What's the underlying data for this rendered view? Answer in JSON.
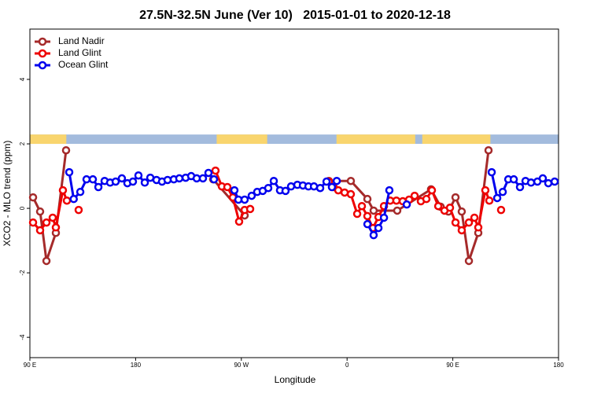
{
  "chart_data": {
    "type": "line",
    "title": "27.5N-32.5N June (Ver 10)   2015-01-01 to 2020-12-18",
    "xlabel": "Longitude",
    "ylabel": "XCO2 - MLO trend (ppm)",
    "xlim": [
      90,
      540
    ],
    "xticks": [
      {
        "value": 90,
        "label": "90 E"
      },
      {
        "value": 180,
        "label": "180"
      },
      {
        "value": 270,
        "label": "90 W"
      },
      {
        "value": 360,
        "label": "0"
      },
      {
        "value": 450,
        "label": "90 E"
      },
      {
        "value": 540,
        "label": "180"
      }
    ],
    "ylim": [
      -4.63,
      5.56
    ],
    "yticks": [
      -4,
      -2,
      0,
      2,
      4
    ],
    "legend": "top-left",
    "surface_band": {
      "y": [
        2.0,
        2.29
      ],
      "ocean_color": "#a3bbdd",
      "land_color": "#f9d56e",
      "land": [
        [
          90,
          121
        ],
        [
          249,
          292
        ],
        [
          351,
          418
        ],
        [
          424,
          482
        ]
      ]
    },
    "series": [
      {
        "name": "Land Nadir",
        "color": "#a52a2a",
        "x": [
          92.7,
          98.7,
          104.1,
          112.1,
          120.8,
          null,
          246.0,
          272.8,
          null,
          344.5,
          363.2,
          377.3,
          382.6,
          402.7,
          431.5,
          439.6,
          446.3,
          452.3,
          457.6,
          463.7,
          471.7,
          480.4
        ],
        "values": [
          0.34,
          -0.1,
          -1.63,
          -0.76,
          1.8,
          null,
          0.9,
          -0.22,
          null,
          0.85,
          0.85,
          0.29,
          -0.07,
          -0.07,
          0.59,
          0.05,
          -0.1,
          0.34,
          -0.1,
          -1.63,
          -0.76,
          1.8
        ]
      },
      {
        "name": "Land Glint",
        "color": "#ee0000",
        "x": [
          92.7,
          98.7,
          104.1,
          109.4,
          112.1,
          118.1,
          121.5,
          null,
          131.5,
          null,
          248.0,
          253.4,
          258.1,
          262.8,
          268.1,
          272.8,
          277.5,
          null,
          344.5,
          348.5,
          352.5,
          357.9,
          363.2,
          368.6,
          372.6,
          377.3,
          382.0,
          386.7,
          391.4,
          396.7,
          402.0,
          407.4,
          412.8,
          417.5,
          422.8,
          427.5,
          432.2,
          437.6,
          442.9,
          447.6,
          452.3,
          457.6,
          463.7,
          468.4,
          471.7,
          477.7,
          481.1,
          null,
          491.1
        ],
        "values": [
          -0.44,
          -0.68,
          -0.44,
          -0.29,
          -0.59,
          0.56,
          0.24,
          null,
          -0.05,
          null,
          1.17,
          0.68,
          0.66,
          0.34,
          -0.41,
          -0.05,
          -0.02,
          null,
          0.83,
          0.66,
          0.56,
          0.49,
          0.44,
          -0.17,
          0.07,
          -0.24,
          -0.61,
          -0.27,
          0.07,
          0.24,
          0.24,
          0.22,
          0.27,
          0.39,
          0.22,
          0.29,
          0.56,
          0.07,
          -0.07,
          0.02,
          -0.44,
          -0.68,
          -0.44,
          -0.29,
          -0.59,
          0.56,
          0.24,
          null,
          -0.05
        ]
      },
      {
        "name": "Ocean Glint",
        "color": "#0000ee",
        "x": [
          123.5,
          127.3,
          132.9,
          138.2,
          143.6,
          148.3,
          153.6,
          158.3,
          163.0,
          168.3,
          173.0,
          177.7,
          182.4,
          187.8,
          192.5,
          197.8,
          202.5,
          207.2,
          212.5,
          217.2,
          222.6,
          227.3,
          232.0,
          237.3,
          242.0,
          246.7,
          null,
          264.1,
          267.5,
          272.8,
          278.8,
          283.5,
          288.2,
          292.9,
          297.6,
          302.9,
          307.6,
          312.3,
          317.7,
          322.4,
          327.1,
          331.8,
          337.1,
          342.5,
          347.1,
          351.2,
          null,
          377.3,
          382.6,
          386.7,
          391.4,
          396.0,
          null,
          410.8,
          null,
          483.1,
          487.8,
          492.5,
          497.2,
          501.9,
          507.2,
          511.9,
          516.6,
          522.0,
          526.6,
          531.3,
          536.7
        ],
        "values": [
          1.12,
          0.29,
          0.51,
          0.9,
          0.9,
          0.66,
          0.85,
          0.8,
          0.83,
          0.93,
          0.78,
          0.83,
          1.02,
          0.8,
          0.95,
          0.88,
          0.83,
          0.88,
          0.9,
          0.93,
          0.95,
          1.0,
          0.93,
          0.93,
          1.1,
          0.9,
          null,
          0.56,
          0.27,
          0.27,
          0.39,
          0.51,
          0.54,
          0.63,
          0.85,
          0.56,
          0.54,
          0.68,
          0.73,
          0.71,
          0.68,
          0.68,
          0.63,
          0.83,
          0.66,
          0.85,
          null,
          -0.49,
          -0.83,
          -0.61,
          -0.29,
          0.56,
          null,
          0.12,
          null,
          1.12,
          0.32,
          0.51,
          0.9,
          0.9,
          0.66,
          0.85,
          0.8,
          0.83,
          0.93,
          0.78,
          0.83
        ]
      }
    ]
  }
}
